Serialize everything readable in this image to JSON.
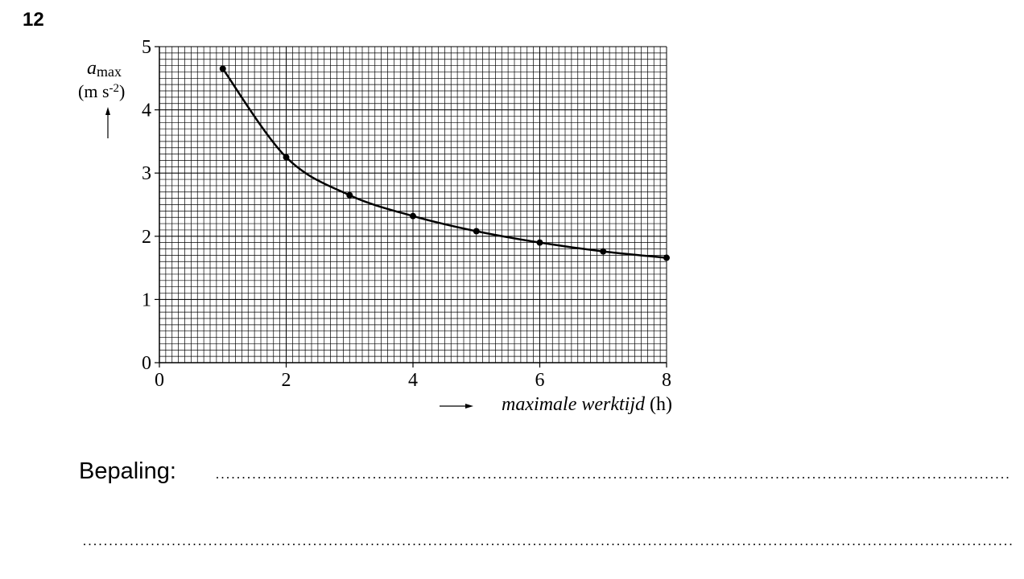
{
  "question_number": "12",
  "chart_data": {
    "type": "line",
    "ylabel": {
      "symbol": "a",
      "subscript": "max",
      "unit": "(m s",
      "exponent": "-2",
      "unit_end": ")"
    },
    "xlabel": {
      "text": "maximale werktijd",
      "unit": "(h)"
    },
    "x": [
      1,
      2,
      3,
      4,
      5,
      6,
      7,
      8
    ],
    "series": [
      {
        "color": "#000000",
        "values": [
          4.65,
          3.25,
          2.65,
          2.32,
          2.08,
          1.9,
          1.76,
          1.66
        ]
      }
    ],
    "xlim": [
      0,
      8
    ],
    "ylim": [
      0,
      5
    ],
    "xticks": [
      0,
      2,
      4,
      6,
      8
    ],
    "yticks": [
      0,
      1,
      2,
      3,
      4,
      5
    ],
    "grid": true
  },
  "answer_prompt": "Bepaling:"
}
